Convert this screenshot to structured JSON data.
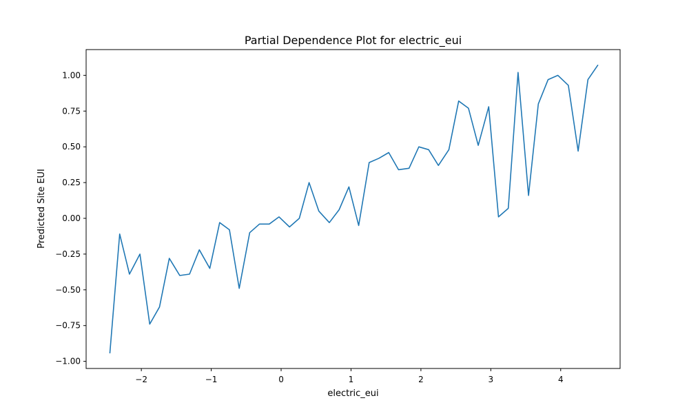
{
  "chart_data": {
    "type": "line",
    "title": "Partial Dependence Plot for electric_eui",
    "xlabel": "electric_eui",
    "ylabel": "Predicted Site EUI",
    "xlim": [
      -2.79,
      4.85
    ],
    "ylim": [
      -1.05,
      1.18
    ],
    "xticks": [
      -2,
      -1,
      0,
      1,
      2,
      3,
      4
    ],
    "xtick_labels": [
      "−2",
      "−1",
      "0",
      "1",
      "2",
      "3",
      "4"
    ],
    "yticks": [
      -1.0,
      -0.75,
      -0.5,
      -0.25,
      0.0,
      0.25,
      0.5,
      0.75,
      1.0
    ],
    "ytick_labels": [
      "−1.00",
      "−0.75",
      "−0.50",
      "−0.25",
      "0.00",
      "0.25",
      "0.50",
      "0.75",
      "1.00"
    ],
    "grid": false,
    "legend": false,
    "line_color": "#1f77b4",
    "series": [
      {
        "x": [
          -2.45,
          -2.31,
          -2.17,
          -2.02,
          -1.88,
          -1.74,
          -1.6,
          -1.45,
          -1.31,
          -1.17,
          -1.02,
          -0.88,
          -0.74,
          -0.6,
          -0.45,
          -0.31,
          -0.17,
          -0.03,
          0.12,
          0.26,
          0.4,
          0.54,
          0.69,
          0.83,
          0.97,
          1.11,
          1.26,
          1.4,
          1.54,
          1.68,
          1.83,
          1.97,
          2.11,
          2.25,
          2.4,
          2.54,
          2.68,
          2.82,
          2.97,
          3.11,
          3.25,
          3.39,
          3.54,
          3.68,
          3.82,
          3.96,
          4.11,
          4.25,
          4.39,
          4.53
        ],
        "y": [
          -0.94,
          -0.11,
          -0.39,
          -0.25,
          -0.74,
          -0.62,
          -0.28,
          -0.4,
          -0.39,
          -0.22,
          -0.35,
          -0.03,
          -0.08,
          -0.49,
          -0.1,
          -0.04,
          -0.04,
          0.01,
          -0.06,
          0.0,
          0.25,
          0.05,
          -0.03,
          0.06,
          0.22,
          -0.05,
          0.39,
          0.42,
          0.46,
          0.34,
          0.35,
          0.5,
          0.48,
          0.37,
          0.48,
          0.82,
          0.77,
          0.51,
          0.78,
          0.01,
          0.07,
          1.02,
          0.16,
          0.8,
          0.97,
          1.0,
          0.93,
          0.47,
          0.97,
          1.07
        ]
      }
    ]
  }
}
